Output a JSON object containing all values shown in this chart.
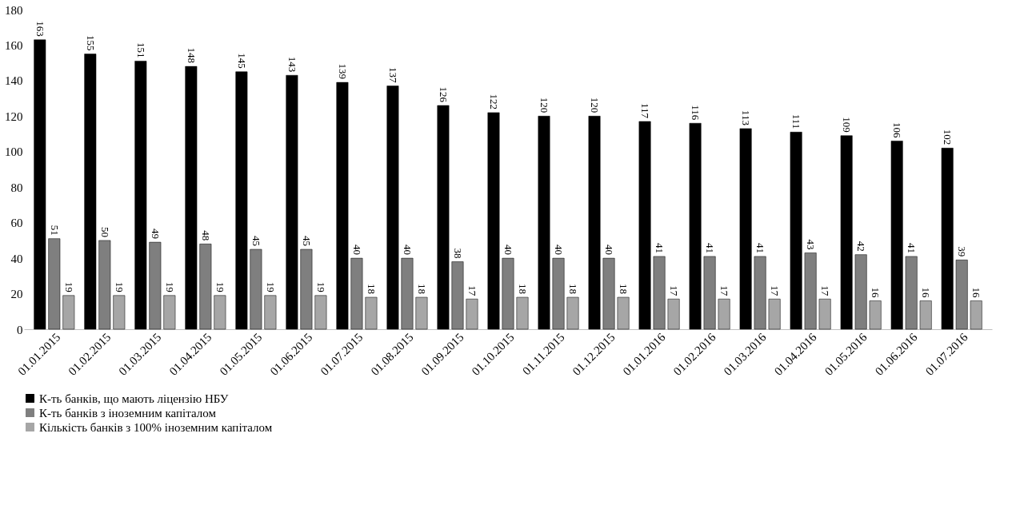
{
  "chart_data": {
    "type": "bar",
    "categories": [
      "01.01.2015",
      "01.02.2015",
      "01.03.2015",
      "01.04.2015",
      "01.05.2015",
      "01.06.2015",
      "01.07.2015",
      "01.08.2015",
      "01.09.2015",
      "01.10.2015",
      "01.11.2015",
      "01.12.2015",
      "01.01.2016",
      "01.02.2016",
      "01.03.2016",
      "01.04.2016",
      "01.05.2016",
      "01.06.2016",
      "01.07.2016"
    ],
    "series": [
      {
        "name": "К-ть банків, що мають ліцензію НБУ",
        "color": "#000000",
        "values": [
          163,
          155,
          151,
          148,
          145,
          143,
          139,
          137,
          126,
          122,
          120,
          120,
          117,
          116,
          113,
          111,
          109,
          106,
          102
        ]
      },
      {
        "name": "К-ть банків з іноземним капіталом",
        "color": "#7f7f7f",
        "values": [
          51,
          50,
          49,
          48,
          45,
          45,
          40,
          40,
          38,
          40,
          40,
          40,
          41,
          41,
          41,
          43,
          42,
          41,
          39
        ]
      },
      {
        "name": "Кількість банків з 100% іноземним капіталом",
        "color": "#a6a6a6",
        "values": [
          19,
          19,
          19,
          19,
          19,
          19,
          18,
          18,
          17,
          18,
          18,
          18,
          17,
          17,
          17,
          17,
          16,
          16,
          16
        ]
      }
    ],
    "ylim": [
      0,
      180
    ],
    "yticks": [
      0,
      20,
      40,
      60,
      80,
      100,
      120,
      140,
      160,
      180
    ],
    "data_labels": true,
    "grid": false,
    "legend": "bottom"
  }
}
